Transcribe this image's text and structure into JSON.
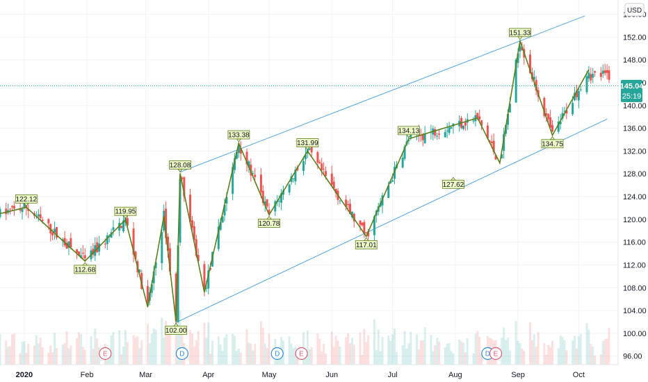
{
  "currency": "USD",
  "current_price": "145.04",
  "countdown": "25:19",
  "colors": {
    "up": "#26a69a",
    "down": "#ef5350",
    "zigzag": "#5b7f1c",
    "channel": "#4fa3e0",
    "label_bg": "#eef7c6",
    "price_tag": "#26a69a",
    "event_earnings": "#e05c72",
    "event_dividend": "#2b8bd6"
  },
  "chart_data": {
    "type": "candlestick",
    "y_ticks": [
      "156.00",
      "152.00",
      "148.00",
      "144.00",
      "140.00",
      "136.00",
      "132.00",
      "128.00",
      "124.00",
      "120.00",
      "116.00",
      "112.00",
      "108.00",
      "104.00",
      "100.00",
      "96.00"
    ],
    "x_ticks": [
      "2020",
      "Feb",
      "Mar",
      "Apr",
      "May",
      "Jun",
      "Jul",
      "Aug",
      "Sep",
      "Oct"
    ],
    "ylim": [
      94.5,
      158.5
    ],
    "zigzag_path": [
      {
        "date": "2019-12-20",
        "price": 121.0
      },
      {
        "date": "2020-01-02",
        "price": 122.12
      },
      {
        "date": "2020-01-31",
        "price": 112.68
      },
      {
        "date": "2020-02-20",
        "price": 119.95
      },
      {
        "date": "2020-03-02",
        "price": 104.6
      },
      {
        "date": "2020-03-10",
        "price": 120.6
      },
      {
        "date": "2020-03-16",
        "price": 102.0
      },
      {
        "date": "2020-03-18",
        "price": 128.08
      },
      {
        "date": "2020-03-30",
        "price": 107.2
      },
      {
        "date": "2020-04-16",
        "price": 133.38
      },
      {
        "date": "2020-05-01",
        "price": 120.78
      },
      {
        "date": "2020-05-20",
        "price": 131.99
      },
      {
        "date": "2020-06-18",
        "price": 117.01
      },
      {
        "date": "2020-07-09",
        "price": 134.13
      },
      {
        "date": "2020-08-12",
        "price": 137.8
      },
      {
        "date": "2020-08-23",
        "price": 129.9
      },
      {
        "date": "2020-09-02",
        "price": 151.33
      },
      {
        "date": "2020-09-18",
        "price": 134.75
      },
      {
        "date": "2020-10-06",
        "price": 146.3
      }
    ],
    "pivot_labels": [
      {
        "text": "122.12",
        "date": "2020-01-02",
        "price": 122.12,
        "pos": "above"
      },
      {
        "text": "112.68",
        "date": "2020-01-31",
        "price": 112.68,
        "pos": "below"
      },
      {
        "text": "119.95",
        "date": "2020-02-20",
        "price": 119.95,
        "pos": "above"
      },
      {
        "text": "102.00",
        "date": "2020-03-16",
        "price": 102.0,
        "pos": "below"
      },
      {
        "text": "128.08",
        "date": "2020-03-18",
        "price": 128.08,
        "pos": "above"
      },
      {
        "text": "133.38",
        "date": "2020-04-16",
        "price": 133.38,
        "pos": "above"
      },
      {
        "text": "120.78",
        "date": "2020-05-01",
        "price": 120.78,
        "pos": "below"
      },
      {
        "text": "131.99",
        "date": "2020-05-20",
        "price": 131.99,
        "pos": "above"
      },
      {
        "text": "117.01",
        "date": "2020-06-18",
        "price": 117.01,
        "pos": "below"
      },
      {
        "text": "134.13",
        "date": "2020-07-09",
        "price": 134.13,
        "pos": "above"
      },
      {
        "text": "127.62",
        "date": "2020-07-31",
        "price": 127.62,
        "pos": "below"
      },
      {
        "text": "151.33",
        "date": "2020-09-02",
        "price": 151.33,
        "pos": "above"
      },
      {
        "text": "134.75",
        "date": "2020-09-18",
        "price": 134.75,
        "pos": "below"
      }
    ],
    "channel_lines": [
      {
        "from": {
          "date": "2020-03-18",
          "price": 128.3
        },
        "to": {
          "date": "2020-10-04",
          "price": 155.7
        }
      },
      {
        "from": {
          "date": "2020-03-16",
          "price": 101.9
        },
        "to": {
          "date": "2020-10-15",
          "price": 137.6
        }
      }
    ],
    "events": [
      {
        "type": "E",
        "date": "2020-02-10"
      },
      {
        "type": "D",
        "date": "2020-03-19"
      },
      {
        "type": "D",
        "date": "2020-05-05"
      },
      {
        "type": "E",
        "date": "2020-05-17"
      },
      {
        "type": "D",
        "date": "2020-08-17"
      },
      {
        "type": "E",
        "date": "2020-08-21"
      }
    ]
  }
}
